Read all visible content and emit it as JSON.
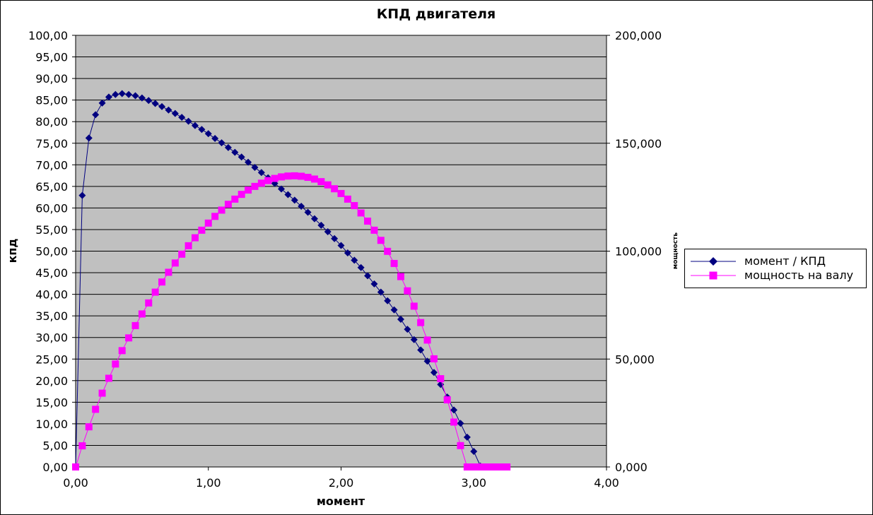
{
  "chart_data": {
    "type": "scatter",
    "title": "КПД двигателя",
    "xlabel": "момент",
    "ylabel": "кпд",
    "y2label": "мощность",
    "xlim": [
      0,
      4
    ],
    "ylim": [
      0,
      100
    ],
    "y2lim": [
      0,
      200
    ],
    "x_ticks": [
      "0,00",
      "1,00",
      "2,00",
      "3,00",
      "4,00"
    ],
    "y_ticks": [
      "0,00",
      "5,00",
      "10,00",
      "15,00",
      "20,00",
      "25,00",
      "30,00",
      "35,00",
      "40,00",
      "45,00",
      "50,00",
      "55,00",
      "60,00",
      "65,00",
      "70,00",
      "75,00",
      "80,00",
      "85,00",
      "90,00",
      "95,00",
      "100,00"
    ],
    "y2_ticks": [
      "0,000",
      "50,000",
      "100,000",
      "150,000",
      "200,000"
    ],
    "grid": true,
    "legend_position": "right",
    "colors": {
      "plot_bg": "#c0c0c0",
      "series1": "#000080",
      "series2": "#ff00ff"
    },
    "series": [
      {
        "name": "момент / КПД",
        "axis": "left",
        "marker": "diamond",
        "x": [
          0.0,
          0.05,
          0.1,
          0.15,
          0.2,
          0.25,
          0.3,
          0.35,
          0.4,
          0.45,
          0.5,
          0.55,
          0.6,
          0.65,
          0.7,
          0.75,
          0.8,
          0.85,
          0.9,
          0.95,
          1.0,
          1.05,
          1.1,
          1.15,
          1.2,
          1.25,
          1.3,
          1.35,
          1.4,
          1.45,
          1.5,
          1.55,
          1.6,
          1.65,
          1.7,
          1.75,
          1.8,
          1.85,
          1.9,
          1.95,
          2.0,
          2.05,
          2.1,
          2.15,
          2.2,
          2.25,
          2.3,
          2.35,
          2.4,
          2.45,
          2.5,
          2.55,
          2.6,
          2.65,
          2.7,
          2.75,
          2.8,
          2.85,
          2.9,
          2.95,
          3.0,
          3.05,
          3.1,
          3.15,
          3.2,
          3.25
        ],
        "y": [
          0.0,
          62.9,
          76.2,
          81.6,
          84.3,
          85.7,
          86.3,
          86.5,
          86.3,
          86.0,
          85.5,
          84.9,
          84.2,
          83.5,
          82.7,
          81.9,
          81.0,
          80.1,
          79.1,
          78.2,
          77.2,
          76.1,
          75.1,
          74.0,
          72.9,
          71.8,
          70.6,
          69.4,
          68.2,
          67.0,
          65.7,
          64.4,
          63.1,
          61.8,
          60.4,
          59.0,
          57.5,
          56.0,
          54.5,
          52.9,
          51.3,
          49.6,
          47.9,
          46.2,
          44.3,
          42.4,
          40.5,
          38.5,
          36.4,
          34.2,
          31.9,
          29.5,
          27.1,
          24.5,
          21.9,
          19.1,
          16.2,
          13.2,
          10.1,
          6.9,
          3.6,
          0.2,
          0.0,
          0.0,
          0.0,
          0.0
        ]
      },
      {
        "name": "мощность на валу",
        "axis": "right",
        "marker": "square",
        "x": [
          0.0,
          0.05,
          0.1,
          0.15,
          0.2,
          0.25,
          0.3,
          0.35,
          0.4,
          0.45,
          0.5,
          0.55,
          0.6,
          0.65,
          0.7,
          0.75,
          0.8,
          0.85,
          0.9,
          0.95,
          1.0,
          1.05,
          1.1,
          1.15,
          1.2,
          1.25,
          1.3,
          1.35,
          1.4,
          1.45,
          1.5,
          1.55,
          1.6,
          1.65,
          1.7,
          1.75,
          1.8,
          1.85,
          1.9,
          1.95,
          2.0,
          2.05,
          2.1,
          2.15,
          2.2,
          2.25,
          2.3,
          2.35,
          2.4,
          2.45,
          2.5,
          2.55,
          2.6,
          2.65,
          2.7,
          2.75,
          2.8,
          2.85,
          2.9,
          2.95,
          3.0,
          3.05,
          3.1,
          3.15,
          3.2,
          3.25
        ],
        "y": [
          0.0,
          9.8,
          18.6,
          26.7,
          34.2,
          41.1,
          47.7,
          53.9,
          59.8,
          65.5,
          70.9,
          76.0,
          81.0,
          85.7,
          90.2,
          94.5,
          98.6,
          102.5,
          106.2,
          109.7,
          113.0,
          116.1,
          119.0,
          121.7,
          124.1,
          126.3,
          128.3,
          130.0,
          131.5,
          132.7,
          133.7,
          134.4,
          134.8,
          134.9,
          134.7,
          134.2,
          133.4,
          132.2,
          130.7,
          128.9,
          126.7,
          124.1,
          121.1,
          117.7,
          113.9,
          109.7,
          105.0,
          99.9,
          94.3,
          88.2,
          81.6,
          74.5,
          66.9,
          58.8,
          50.1,
          40.9,
          31.1,
          20.8,
          9.9,
          0.0,
          0.0,
          0.0,
          0.0,
          0.0,
          0.0,
          0.0
        ]
      }
    ]
  }
}
